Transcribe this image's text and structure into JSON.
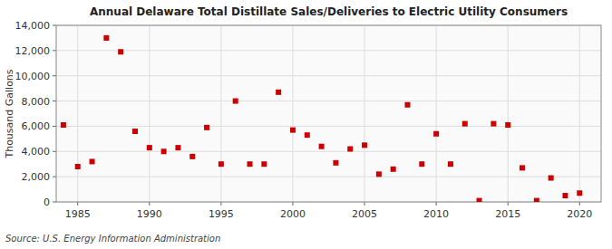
{
  "chart_data": {
    "type": "scatter",
    "title": "Annual Delaware Total Distillate Sales/Deliveries to Electric Utility Consumers",
    "ylabel": "Thousand Gallons",
    "annotations": [
      "Source: U.S. Energy Information Administration"
    ],
    "x": [
      1984,
      1985,
      1986,
      1987,
      1988,
      1989,
      1990,
      1991,
      1992,
      1993,
      1994,
      1995,
      1996,
      1997,
      1998,
      1999,
      2000,
      2001,
      2002,
      2003,
      2004,
      2005,
      2006,
      2007,
      2008,
      2009,
      2010,
      2011,
      2012,
      2013,
      2014,
      2015,
      2016,
      2017,
      2018,
      2019,
      2020
    ],
    "values": [
      6100,
      2800,
      3200,
      13000,
      11900,
      5600,
      4300,
      4000,
      4300,
      3600,
      5900,
      3000,
      8000,
      3000,
      3000,
      8700,
      5700,
      5300,
      4400,
      3100,
      4200,
      4500,
      2200,
      2600,
      7700,
      3000,
      5400,
      3000,
      6200,
      100,
      6200,
      6100,
      2700,
      100,
      1900,
      500,
      700
    ],
    "color": "#cc0000",
    "marker": "square",
    "xlim": [
      1983.5,
      2021.5
    ],
    "ylim": [
      0,
      14000
    ],
    "xticks": [
      1985,
      1990,
      1995,
      2000,
      2005,
      2010,
      2015,
      2020
    ],
    "yticks": [
      0,
      {
        "value": 2000,
        "label": "2,000"
      },
      {
        "value": 4000,
        "label": "4,000"
      },
      {
        "value": 6000,
        "label": "6,000"
      },
      {
        "value": 8000,
        "label": "8,000"
      },
      {
        "value": 10000,
        "label": "10,000"
      },
      {
        "value": 12000,
        "label": "12,000"
      },
      {
        "value": 14000,
        "label": "14,000"
      }
    ],
    "grid": true
  }
}
